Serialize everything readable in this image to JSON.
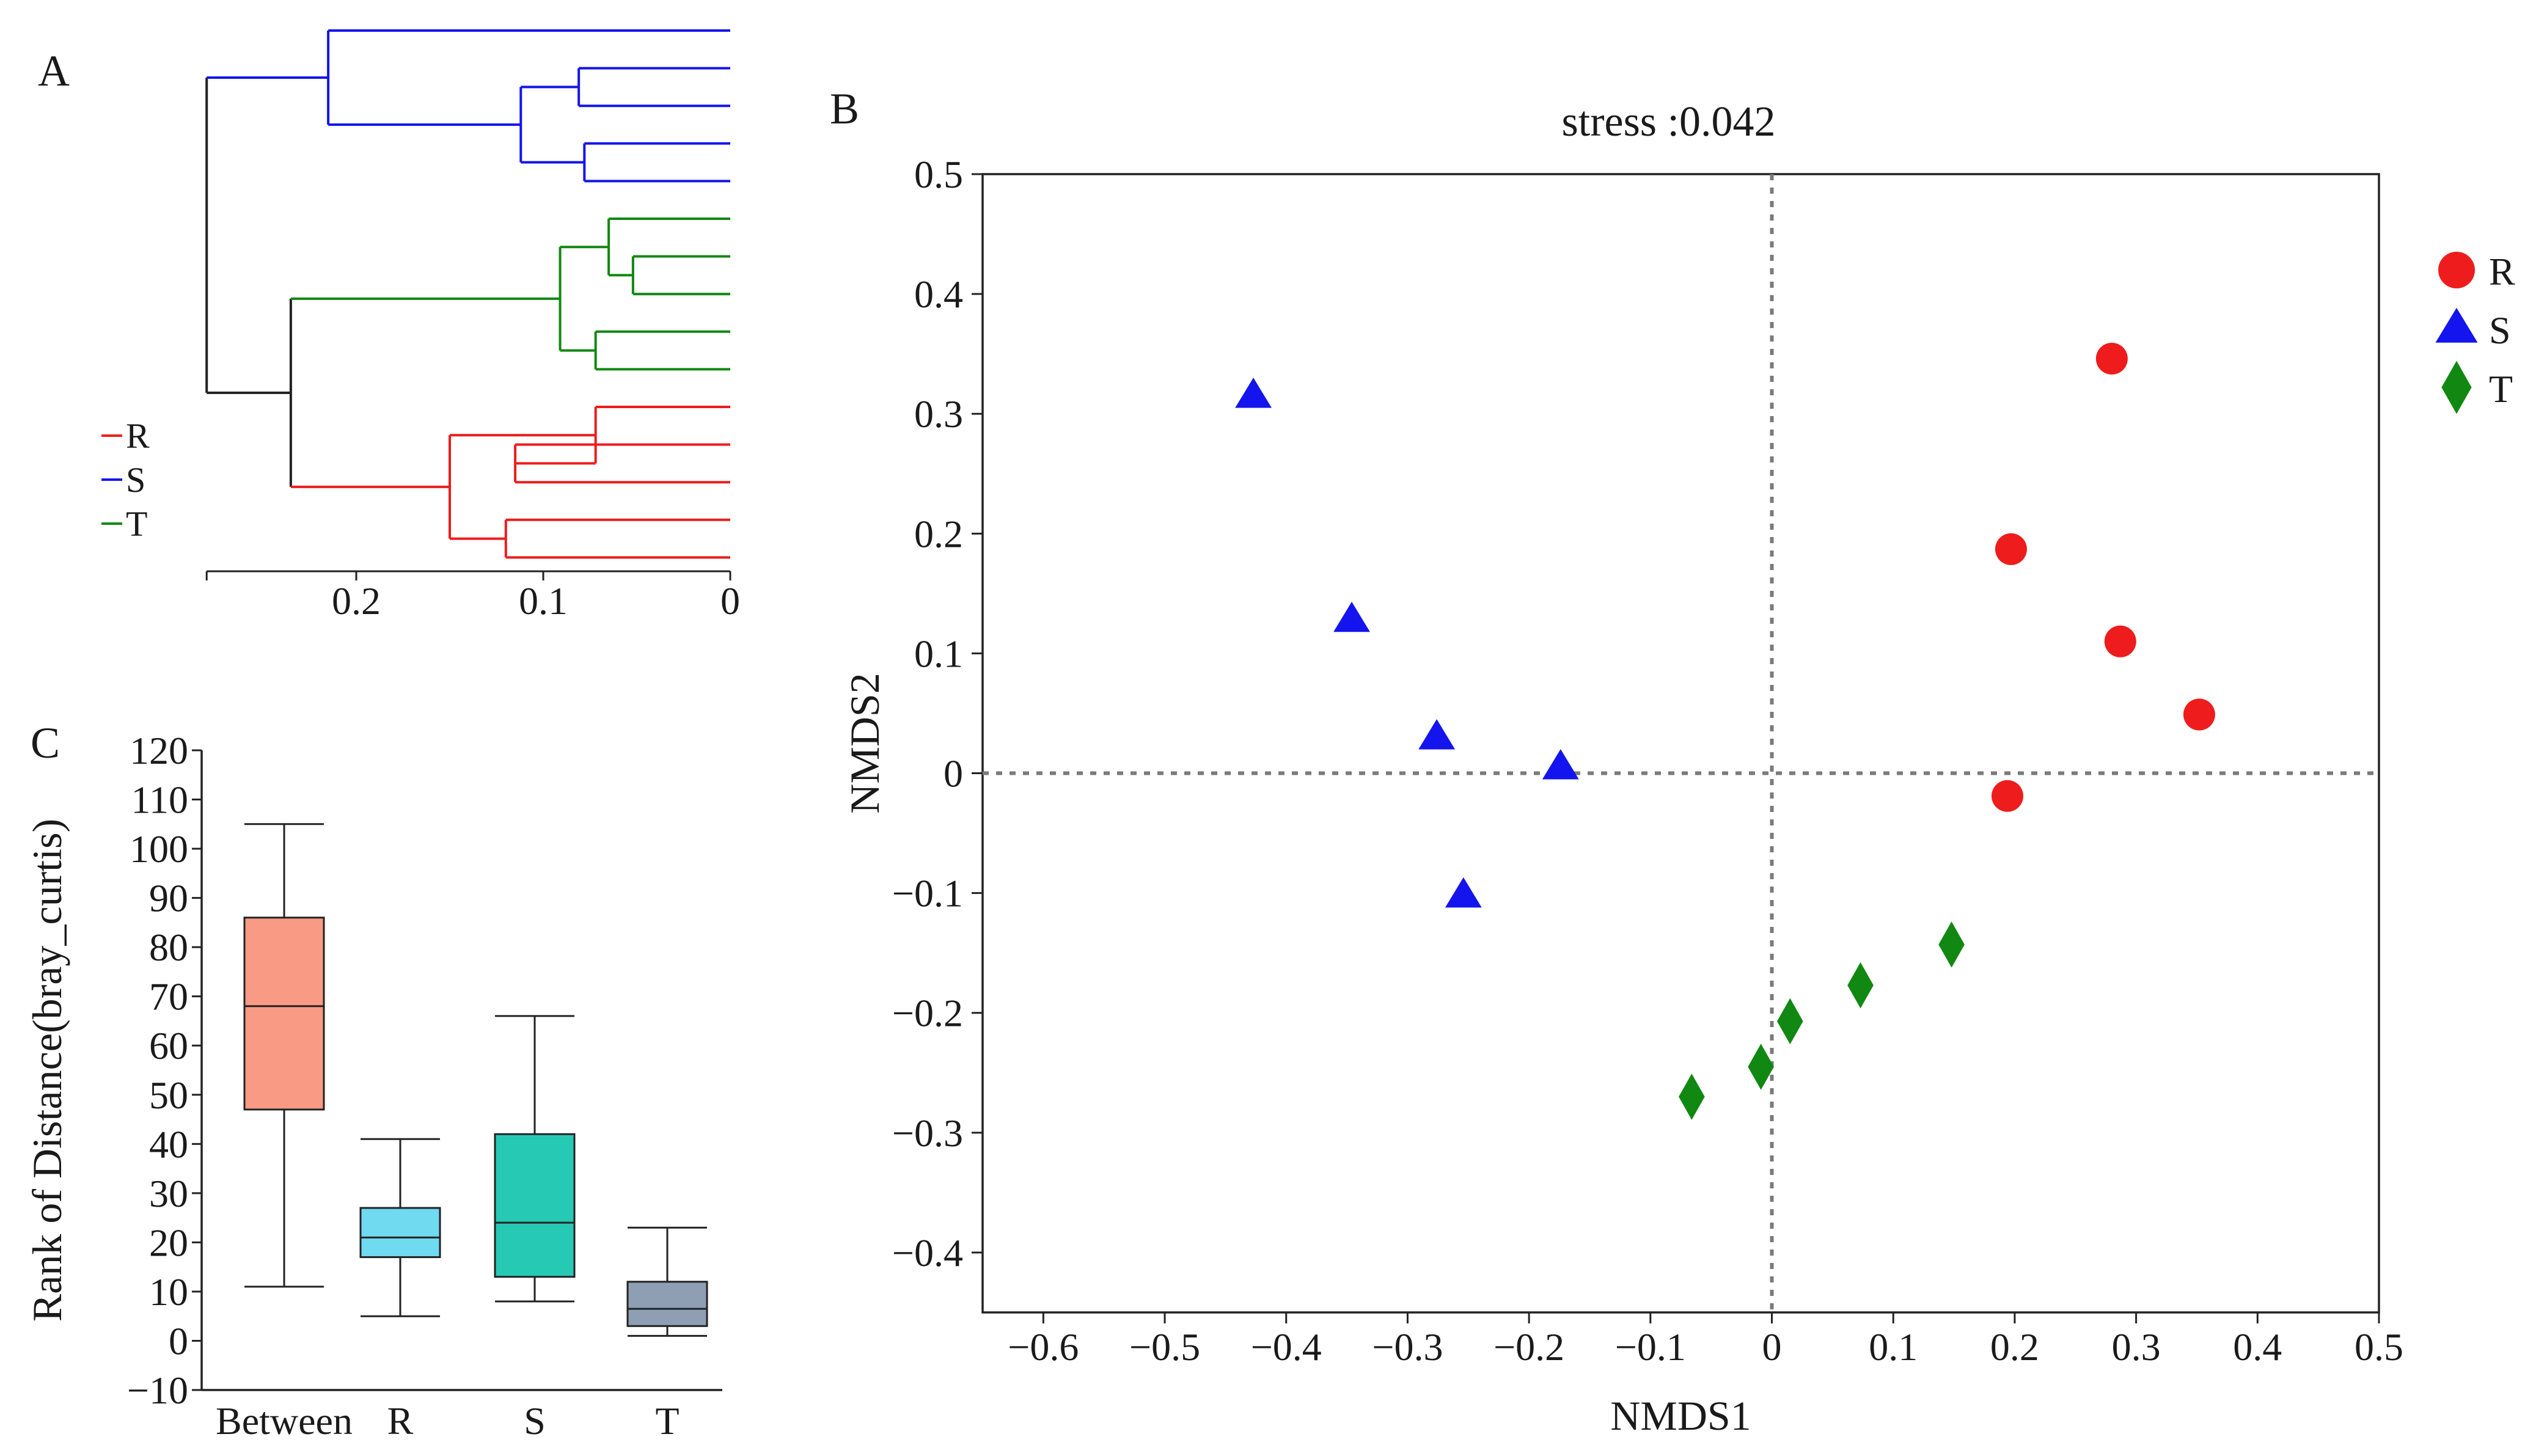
{
  "figure": {
    "panels": [
      "A",
      "B",
      "C"
    ],
    "colors": {
      "R": "#ee1c1c",
      "S": "#1414ee",
      "T": "#118811",
      "axis": "#222222",
      "ref_line": "#7a7a7a",
      "whisker": "#222222"
    }
  },
  "chart_data": [
    {
      "panel": "A",
      "type": "dendrogram",
      "title": "",
      "x_axis": {
        "ticks": [
          "0.2",
          "0.1",
          "0"
        ],
        "reversed": true,
        "range": [
          0.28,
          0
        ]
      },
      "legend": [
        {
          "label": "R",
          "color": "#ee1c1c"
        },
        {
          "label": "S",
          "color": "#1414ee"
        },
        {
          "label": "T",
          "color": "#118811"
        }
      ],
      "groups": {
        "S": {
          "leaves": 5,
          "merge_heights": [
            0.081,
            0.112,
            0.078,
            0.215
          ]
        },
        "T": {
          "leaves": 5,
          "merge_heights": [
            0.065,
            0.052,
            0.072,
            0.091
          ]
        },
        "R": {
          "leaves": 5,
          "merge_heights": [
            0.072,
            0.115,
            0.12,
            0.15
          ]
        }
      },
      "root_merges": [
        {
          "join": [
            "T",
            "R"
          ],
          "height": 0.235
        },
        {
          "join": [
            "S",
            "T+R"
          ],
          "height": 0.28
        }
      ]
    },
    {
      "panel": "B",
      "type": "scatter",
      "title": "stress :0.042",
      "xlabel": "NMDS1",
      "ylabel": "NMDS2",
      "xlim": [
        -0.65,
        0.5
      ],
      "ylim": [
        -0.45,
        0.5
      ],
      "xticks": [
        -0.6,
        -0.5,
        -0.4,
        -0.3,
        -0.2,
        -0.1,
        0,
        0.1,
        0.2,
        0.3,
        0.4,
        0.5
      ],
      "yticks": [
        0.5,
        0.4,
        0.3,
        0.2,
        0.1,
        0,
        -0.1,
        -0.2,
        -0.3,
        -0.4
      ],
      "xtick_labels": [
        "−0.6",
        "−0.5",
        "−0.4",
        "−0.3",
        "−0.2",
        "−0.1",
        "0",
        "0.1",
        "0.2",
        "0.3",
        "0.4",
        "0.5"
      ],
      "ytick_labels": [
        "0.5",
        "0.4",
        "0.3",
        "0.2",
        "0.1",
        "0",
        "−0.1",
        "−0.2",
        "−0.3",
        "−0.4"
      ],
      "reference_lines": {
        "x": 0,
        "y": 0,
        "style": "dotted"
      },
      "legend_position": "right",
      "series": [
        {
          "name": "R",
          "marker": "circle",
          "color": "#ee1c1c",
          "x": [
            0.28,
            0.197,
            0.287,
            0.352,
            0.194
          ],
          "y": [
            0.346,
            0.187,
            0.11,
            0.049,
            -0.019
          ]
        },
        {
          "name": "S",
          "marker": "triangle",
          "color": "#1414ee",
          "x": [
            -0.427,
            -0.346,
            -0.276,
            -0.174,
            -0.254
          ],
          "y": [
            0.315,
            0.128,
            0.03,
            0.005,
            -0.102
          ]
        },
        {
          "name": "T",
          "marker": "diamond",
          "color": "#118811",
          "x": [
            0.148,
            0.073,
            0.015,
            -0.009,
            -0.066
          ],
          "y": [
            -0.143,
            -0.177,
            -0.207,
            -0.245,
            -0.27
          ]
        }
      ]
    },
    {
      "panel": "C",
      "type": "boxplot",
      "title": "",
      "xlabel": "",
      "ylabel": "Rank of Distance(bray_curtis)",
      "ylim": [
        -10,
        120
      ],
      "yticks": [
        120,
        110,
        100,
        90,
        80,
        70,
        60,
        50,
        40,
        30,
        20,
        10,
        0,
        -10
      ],
      "ytick_labels": [
        "120",
        "110",
        "100",
        "90",
        "80",
        "70",
        "60",
        "50",
        "40",
        "30",
        "20",
        "10",
        "0",
        "−10"
      ],
      "categories": [
        "Between",
        "R",
        "S",
        "T"
      ],
      "boxes": [
        {
          "name": "Between",
          "color": "#f99a85",
          "min": 11,
          "q1": 47,
          "median": 68,
          "q3": 86,
          "max": 105
        },
        {
          "name": "R",
          "color": "#6fdaf0",
          "min": 5,
          "q1": 17,
          "median": 21,
          "q3": 27,
          "max": 41
        },
        {
          "name": "S",
          "color": "#26c9b4",
          "min": 8,
          "q1": 13,
          "median": 24,
          "q3": 42,
          "max": 66
        },
        {
          "name": "T",
          "color": "#8e9fb4",
          "min": 1,
          "q1": 3,
          "median": 6.5,
          "q3": 12,
          "max": 23
        }
      ]
    }
  ]
}
